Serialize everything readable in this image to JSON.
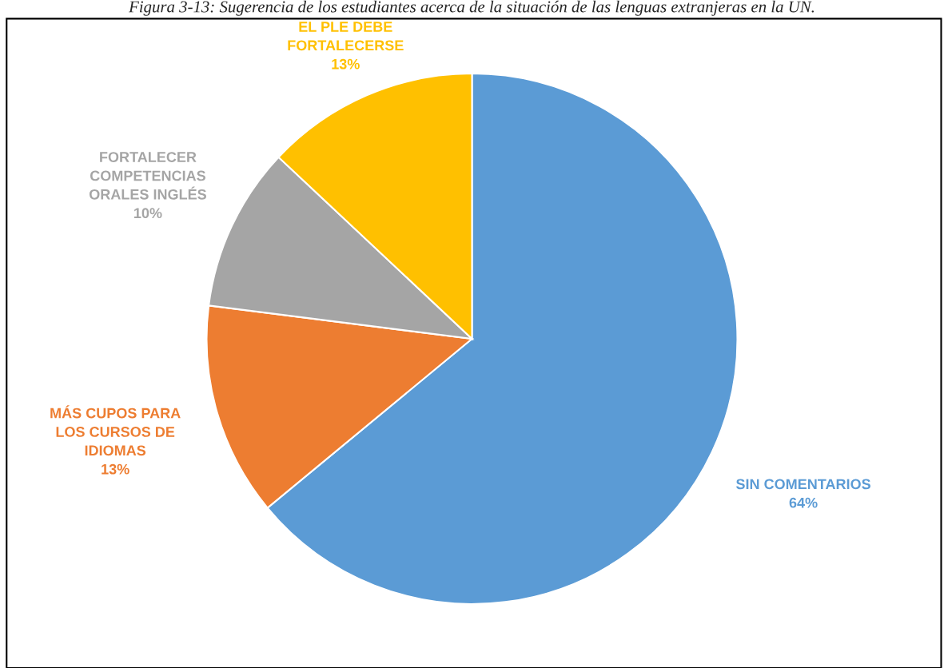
{
  "chart_data": {
    "type": "pie",
    "title": "Figura 3-13: Sugerencia de los estudiantes acerca de la situación de las lenguas extranjeras en la UN.",
    "categories": [
      "SIN COMENTARIOS",
      "MÁS CUPOS PARA\nLOS CURSOS DE\nIDIOMAS",
      "FORTALECER\nCOMPETENCIAS\nORALES INGLÉS",
      "EL PLE DEBE\nFORTALECERSE"
    ],
    "values": [
      64,
      13,
      10,
      13
    ],
    "colors": [
      "#5b9bd5",
      "#ed7d31",
      "#a5a5a5",
      "#ffc000"
    ],
    "value_labels": [
      "64%",
      "13%",
      "10%",
      "13%"
    ]
  }
}
